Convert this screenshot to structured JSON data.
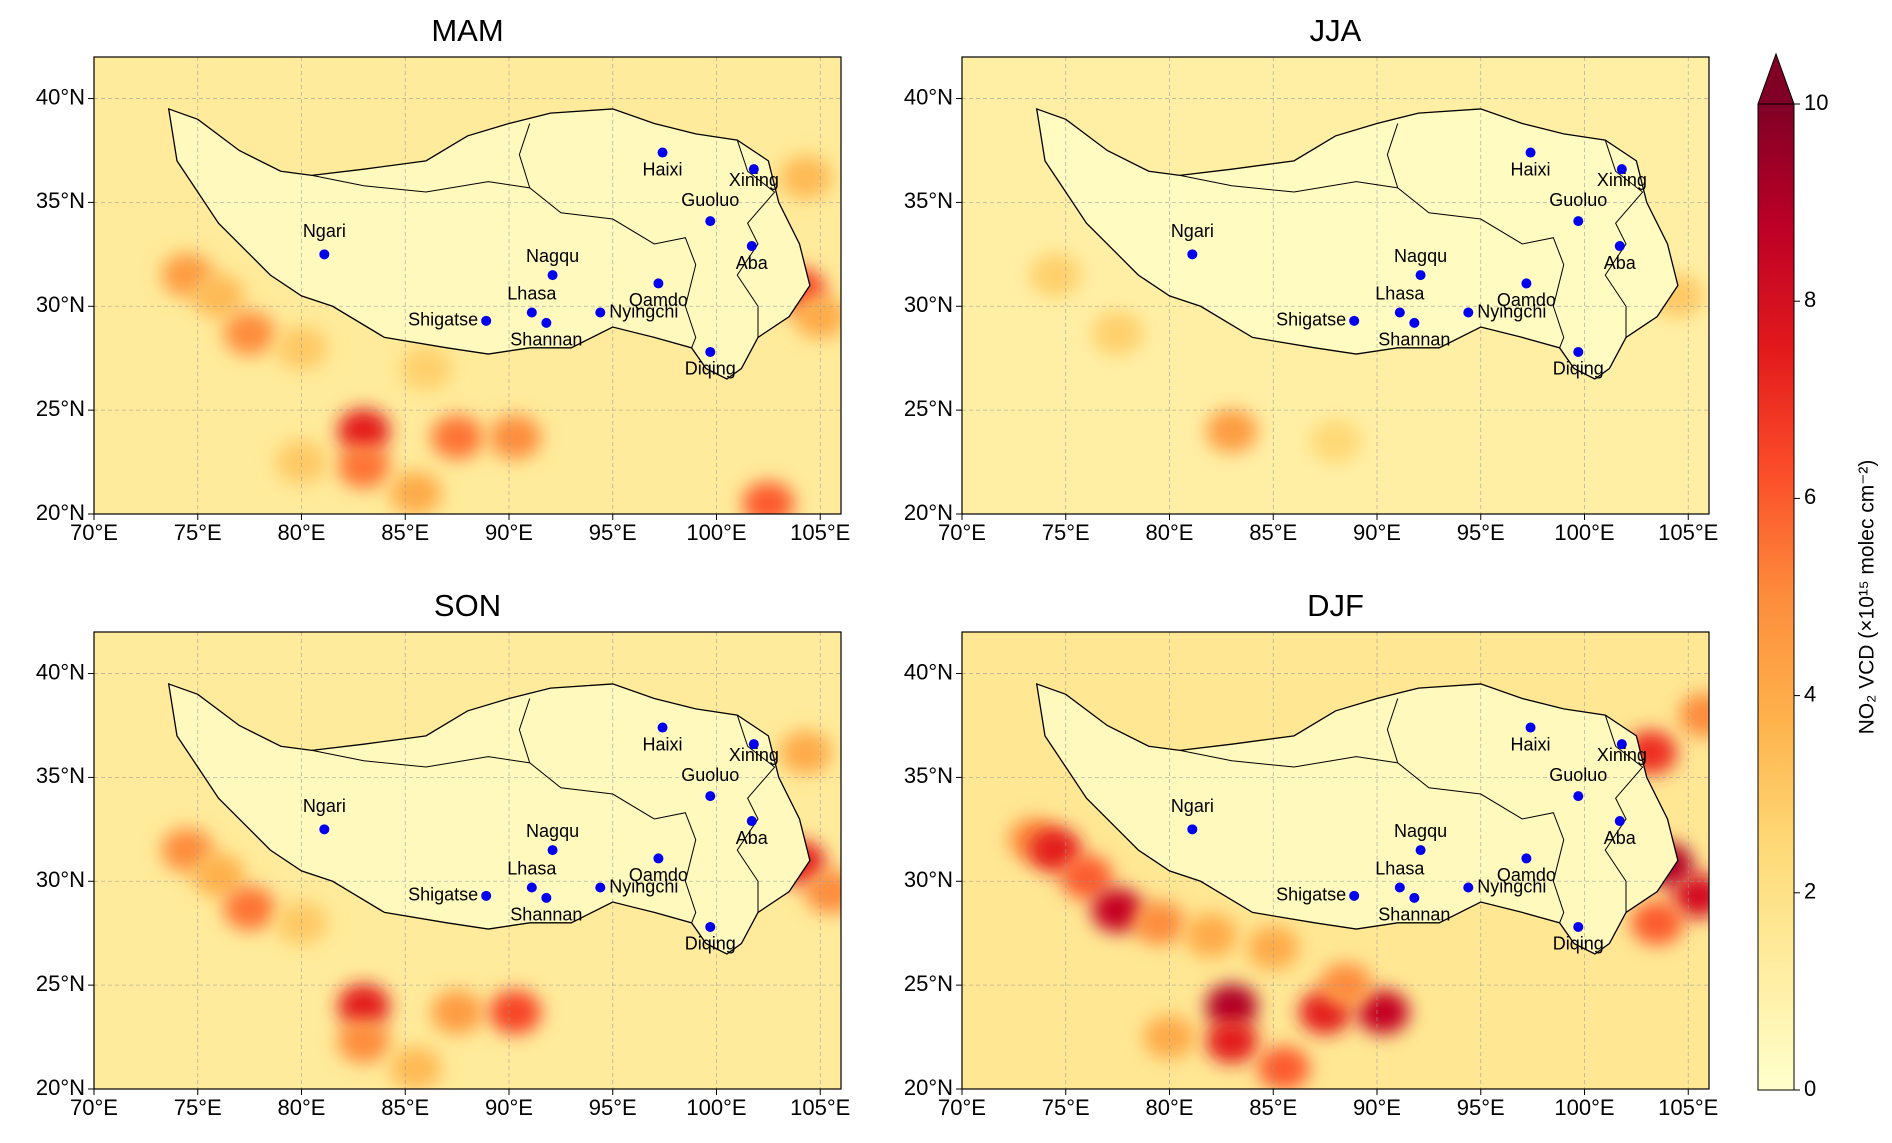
{
  "xlim": [
    70,
    106
  ],
  "ylim": [
    20,
    42
  ],
  "xticks": [
    {
      "value": 70,
      "label": "70°E"
    },
    {
      "value": 75,
      "label": "75°E"
    },
    {
      "value": 80,
      "label": "80°E"
    },
    {
      "value": 85,
      "label": "85°E"
    },
    {
      "value": 90,
      "label": "90°E"
    },
    {
      "value": 95,
      "label": "95°E"
    },
    {
      "value": 100,
      "label": "100°E"
    },
    {
      "value": 105,
      "label": "105°E"
    }
  ],
  "yticks": [
    {
      "value": 20,
      "label": "20°N"
    },
    {
      "value": 25,
      "label": "25°N"
    },
    {
      "value": 30,
      "label": "30°N"
    },
    {
      "value": 35,
      "label": "35°N"
    },
    {
      "value": 40,
      "label": "40°N"
    }
  ],
  "cities": [
    {
      "name": "Haixi",
      "lon": 97.4,
      "lat": 37.4
    },
    {
      "name": "Xining",
      "lon": 101.8,
      "lat": 36.6
    },
    {
      "name": "Guoluo",
      "lon": 99.7,
      "lat": 34.1
    },
    {
      "name": "Ngari",
      "lon": 81.1,
      "lat": 32.5
    },
    {
      "name": "Nagqu",
      "lon": 92.1,
      "lat": 31.5
    },
    {
      "name": "Qamdo",
      "lon": 97.2,
      "lat": 31.1
    },
    {
      "name": "Aba",
      "lon": 101.7,
      "lat": 32.9
    },
    {
      "name": "Lhasa",
      "lon": 91.1,
      "lat": 29.7
    },
    {
      "name": "Shigatse",
      "lon": 88.9,
      "lat": 29.3
    },
    {
      "name": "Shannan",
      "lon": 91.8,
      "lat": 29.2
    },
    {
      "name": "Nyingchi",
      "lon": 94.4,
      "lat": 29.7
    },
    {
      "name": "Diqing",
      "lon": 99.7,
      "lat": 27.8
    }
  ],
  "panels": [
    {
      "title": "MAM",
      "background_value": 1.4,
      "plateau_value": 0.4,
      "hotspots": [
        {
          "lon": 74.5,
          "lat": 31.5,
          "value": 4.5
        },
        {
          "lon": 76,
          "lat": 30.5,
          "value": 3.5
        },
        {
          "lon": 77.5,
          "lat": 28.7,
          "value": 5
        },
        {
          "lon": 80,
          "lat": 28,
          "value": 3
        },
        {
          "lon": 86,
          "lat": 27,
          "value": 2.8
        },
        {
          "lon": 83,
          "lat": 24,
          "value": 7.5
        },
        {
          "lon": 83,
          "lat": 22.3,
          "value": 5.5
        },
        {
          "lon": 87.5,
          "lat": 23.7,
          "value": 5.5
        },
        {
          "lon": 90.3,
          "lat": 23.7,
          "value": 5
        },
        {
          "lon": 85.5,
          "lat": 21,
          "value": 4
        },
        {
          "lon": 104,
          "lat": 30.8,
          "value": 6.5
        },
        {
          "lon": 105,
          "lat": 29.5,
          "value": 4
        },
        {
          "lon": 102.5,
          "lat": 20.5,
          "value": 6
        },
        {
          "lon": 80,
          "lat": 22.5,
          "value": 3
        },
        {
          "lon": 104.3,
          "lat": 36.2,
          "value": 3.5
        }
      ]
    },
    {
      "title": "JJA",
      "background_value": 1.1,
      "plateau_value": 0.3,
      "hotspots": [
        {
          "lon": 74.5,
          "lat": 31.5,
          "value": 2.8
        },
        {
          "lon": 77.5,
          "lat": 28.7,
          "value": 2.8
        },
        {
          "lon": 83,
          "lat": 24,
          "value": 4.5
        },
        {
          "lon": 104.5,
          "lat": 30.5,
          "value": 3
        },
        {
          "lon": 88,
          "lat": 23.5,
          "value": 2.5
        }
      ]
    },
    {
      "title": "SON",
      "background_value": 1.4,
      "plateau_value": 0.4,
      "hotspots": [
        {
          "lon": 74.5,
          "lat": 31.5,
          "value": 5
        },
        {
          "lon": 76,
          "lat": 30.3,
          "value": 3.8
        },
        {
          "lon": 77.5,
          "lat": 28.7,
          "value": 5.5
        },
        {
          "lon": 80,
          "lat": 28,
          "value": 3
        },
        {
          "lon": 83,
          "lat": 24,
          "value": 7.5
        },
        {
          "lon": 83,
          "lat": 22.3,
          "value": 5
        },
        {
          "lon": 87.5,
          "lat": 23.7,
          "value": 4.5
        },
        {
          "lon": 90.3,
          "lat": 23.7,
          "value": 6.5
        },
        {
          "lon": 104,
          "lat": 30.9,
          "value": 7.5
        },
        {
          "lon": 105.5,
          "lat": 29.5,
          "value": 5
        },
        {
          "lon": 104.3,
          "lat": 36.2,
          "value": 4
        },
        {
          "lon": 85.5,
          "lat": 21,
          "value": 3.5
        }
      ]
    },
    {
      "title": "DJF",
      "background_value": 1.6,
      "plateau_value": 0.4,
      "hotspots": [
        {
          "lon": 73.5,
          "lat": 32,
          "value": 5
        },
        {
          "lon": 74.5,
          "lat": 31.5,
          "value": 7.5
        },
        {
          "lon": 76,
          "lat": 30.2,
          "value": 6
        },
        {
          "lon": 77.5,
          "lat": 28.6,
          "value": 8.5
        },
        {
          "lon": 79.5,
          "lat": 28,
          "value": 5
        },
        {
          "lon": 82,
          "lat": 27.4,
          "value": 4
        },
        {
          "lon": 85,
          "lat": 26.8,
          "value": 4
        },
        {
          "lon": 83,
          "lat": 24,
          "value": 9
        },
        {
          "lon": 83,
          "lat": 22.3,
          "value": 7.5
        },
        {
          "lon": 85.5,
          "lat": 21,
          "value": 6
        },
        {
          "lon": 87.5,
          "lat": 23.7,
          "value": 7.5
        },
        {
          "lon": 90.3,
          "lat": 23.7,
          "value": 8.5
        },
        {
          "lon": 88.5,
          "lat": 25,
          "value": 5
        },
        {
          "lon": 104,
          "lat": 30.8,
          "value": 9
        },
        {
          "lon": 105.5,
          "lat": 29.3,
          "value": 8
        },
        {
          "lon": 103.5,
          "lat": 28,
          "value": 6
        },
        {
          "lon": 103.2,
          "lat": 36.2,
          "value": 7
        },
        {
          "lon": 105.8,
          "lat": 38,
          "value": 5
        },
        {
          "lon": 80,
          "lat": 22.5,
          "value": 4
        }
      ]
    }
  ],
  "colorbar": {
    "label": "NO₂ VCD (×10¹⁵ molec cm⁻²)",
    "lim": [
      0,
      10
    ],
    "ticks": [
      0,
      2,
      4,
      6,
      8,
      10
    ]
  }
}
